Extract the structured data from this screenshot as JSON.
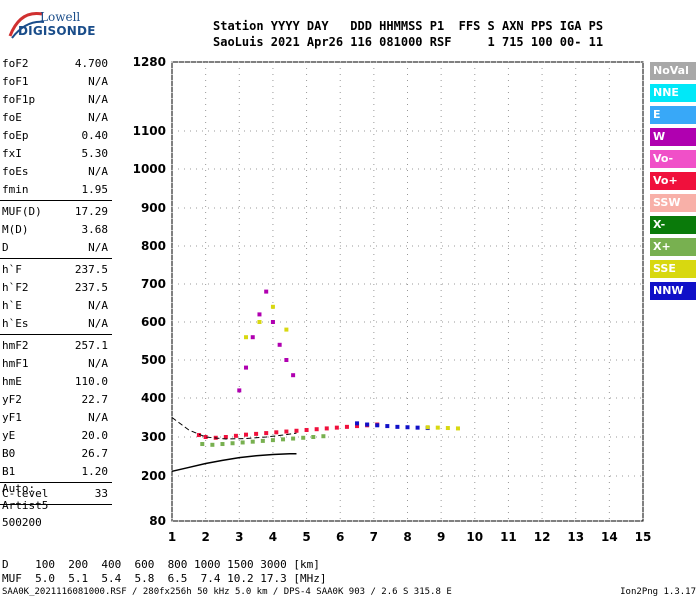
{
  "logo": {
    "line1": "Lowell",
    "line2": "DIGISONDE"
  },
  "header": {
    "labels": "Station YYYY DAY   DDD HHMMSS P1  FFS S AXN PPS IGA PS",
    "values": "SaoLuis 2021 Apr26 116 081000 RSF     1 715 100 00- 11"
  },
  "params": [
    {
      "group": [
        {
          "name": "foF2",
          "value": "4.700"
        },
        {
          "name": "foF1",
          "value": "N/A"
        },
        {
          "name": "foF1p",
          "value": "N/A"
        },
        {
          "name": "foE",
          "value": "N/A"
        },
        {
          "name": "foEp",
          "value": "0.40"
        },
        {
          "name": "fxI",
          "value": "5.30"
        },
        {
          "name": "foEs",
          "value": "N/A"
        },
        {
          "name": "fmin",
          "value": "1.95"
        }
      ]
    },
    {
      "group": [
        {
          "name": "MUF(D)",
          "value": "17.29"
        },
        {
          "name": "M(D)",
          "value": "3.68"
        },
        {
          "name": "D",
          "value": "N/A"
        }
      ]
    },
    {
      "group": [
        {
          "name": "h`F",
          "value": "237.5"
        },
        {
          "name": "h`F2",
          "value": "237.5"
        },
        {
          "name": "h`E",
          "value": "N/A"
        },
        {
          "name": "h`Es",
          "value": "N/A"
        }
      ]
    },
    {
      "group": [
        {
          "name": "hmF2",
          "value": "257.1"
        },
        {
          "name": "hmF1",
          "value": "N/A"
        },
        {
          "name": "hmE",
          "value": "110.0"
        },
        {
          "name": "yF2",
          "value": "22.7"
        },
        {
          "name": "yF1",
          "value": "N/A"
        },
        {
          "name": "yE",
          "value": "20.0"
        },
        {
          "name": "B0",
          "value": "26.7"
        },
        {
          "name": "B1",
          "value": "1.20"
        }
      ]
    },
    {
      "group": [
        {
          "name": "C-level",
          "value": "33"
        }
      ]
    }
  ],
  "auto": {
    "line1": "Auto:",
    "line2": "Artist5",
    "line3": "500200"
  },
  "legend": [
    {
      "label": "NoVal",
      "color": "#a8a8a8"
    },
    {
      "label": "NNE",
      "color": "#00e8f8"
    },
    {
      "label": "E",
      "color": "#38a8f8"
    },
    {
      "label": "W",
      "color": "#b000b0"
    },
    {
      "label": "Vo-",
      "color": "#f050c8"
    },
    {
      "label": "Vo+",
      "color": "#f0103c"
    },
    {
      "label": "SSW",
      "color": "#f8b0a8"
    },
    {
      "label": "X-",
      "color": "#0a7a0a"
    },
    {
      "label": "X+",
      "color": "#78b050"
    },
    {
      "label": "SSE",
      "color": "#d8d810"
    },
    {
      "label": "NNW",
      "color": "#1010c8"
    }
  ],
  "chart_data": {
    "type": "scatter",
    "xlim": [
      1,
      15
    ],
    "ylim": [
      80,
      1280
    ],
    "x_ticks": [
      1,
      2,
      3,
      4,
      5,
      6,
      7,
      8,
      9,
      10,
      11,
      12,
      13,
      14,
      15
    ],
    "y_ticks": [
      80,
      200,
      300,
      400,
      500,
      600,
      700,
      800,
      900,
      1000,
      1100,
      1280
    ],
    "grid": true,
    "profile_curve": {
      "x": [
        1.0,
        1.5,
        2.0,
        2.5,
        3.0,
        3.5,
        4.0,
        4.5,
        4.7
      ],
      "y": [
        212,
        222,
        232,
        240,
        247,
        252,
        255,
        257,
        257.1
      ]
    },
    "dashed_trace": {
      "x": [
        1.0,
        1.5,
        2.0,
        2.6,
        3.2,
        3.8,
        4.3,
        4.7
      ],
      "y": [
        350,
        318,
        300,
        295,
        296,
        300,
        305,
        310
      ]
    },
    "echoes": [
      {
        "direction": "Vo+",
        "x": [
          1.8,
          2.0,
          2.3,
          2.6,
          2.9,
          3.2,
          3.5,
          3.8,
          4.1,
          4.4,
          4.7,
          5.0,
          5.3,
          5.6,
          5.9,
          6.2,
          6.5,
          6.8,
          7.1
        ],
        "y": [
          305,
          300,
          298,
          300,
          303,
          306,
          308,
          310,
          312,
          314,
          316,
          318,
          320,
          322,
          324,
          326,
          328,
          330,
          332
        ]
      },
      {
        "direction": "X+",
        "x": [
          1.9,
          2.2,
          2.5,
          2.8,
          3.1,
          3.4,
          3.7,
          4.0,
          4.3,
          4.6,
          4.9,
          5.2,
          5.5
        ],
        "y": [
          282,
          280,
          282,
          284,
          286,
          288,
          290,
          292,
          294,
          296,
          298,
          300,
          302
        ]
      },
      {
        "direction": "W",
        "x": [
          3.0,
          3.2,
          3.4,
          3.6,
          3.8,
          4.0,
          4.2,
          4.4,
          4.6
        ],
        "y": [
          420,
          480,
          560,
          620,
          680,
          600,
          540,
          500,
          460
        ]
      },
      {
        "direction": "NNW",
        "x": [
          6.5,
          6.8,
          7.1,
          7.4,
          7.7,
          8.0,
          8.3,
          8.6
        ],
        "y": [
          335,
          332,
          330,
          328,
          326,
          325,
          324,
          323
        ]
      },
      {
        "direction": "SSE",
        "x": [
          3.2,
          3.6,
          4.0,
          4.4,
          8.6,
          8.9,
          9.2,
          9.5
        ],
        "y": [
          560,
          600,
          640,
          580,
          325,
          324,
          323,
          322
        ]
      }
    ]
  },
  "axis_x_labels": [
    "1",
    "2",
    "3",
    "4",
    "5",
    "6",
    "7",
    "8",
    "9",
    "10",
    "11",
    "12",
    "13",
    "14",
    "15"
  ],
  "axis_y_labels": [
    "1280",
    "1100",
    "1000",
    "900",
    "800",
    "700",
    "600",
    "500",
    "400",
    "300",
    "200",
    "80"
  ],
  "dtable": {
    "row1": "D    100  200  400  600  800 1000 1500 3000 [km]",
    "row2": "MUF  5.0  5.1  5.4  5.8  6.5  7.4 10.2 17.3 [MHz]"
  },
  "footer": "SAA0K_2021116081000.RSF / 280fx256h 50 kHz 5.0 km / DPS-4 SAA0K 903 / 2.6 S 315.8 E",
  "version": "Ion2Png 1.3.17"
}
